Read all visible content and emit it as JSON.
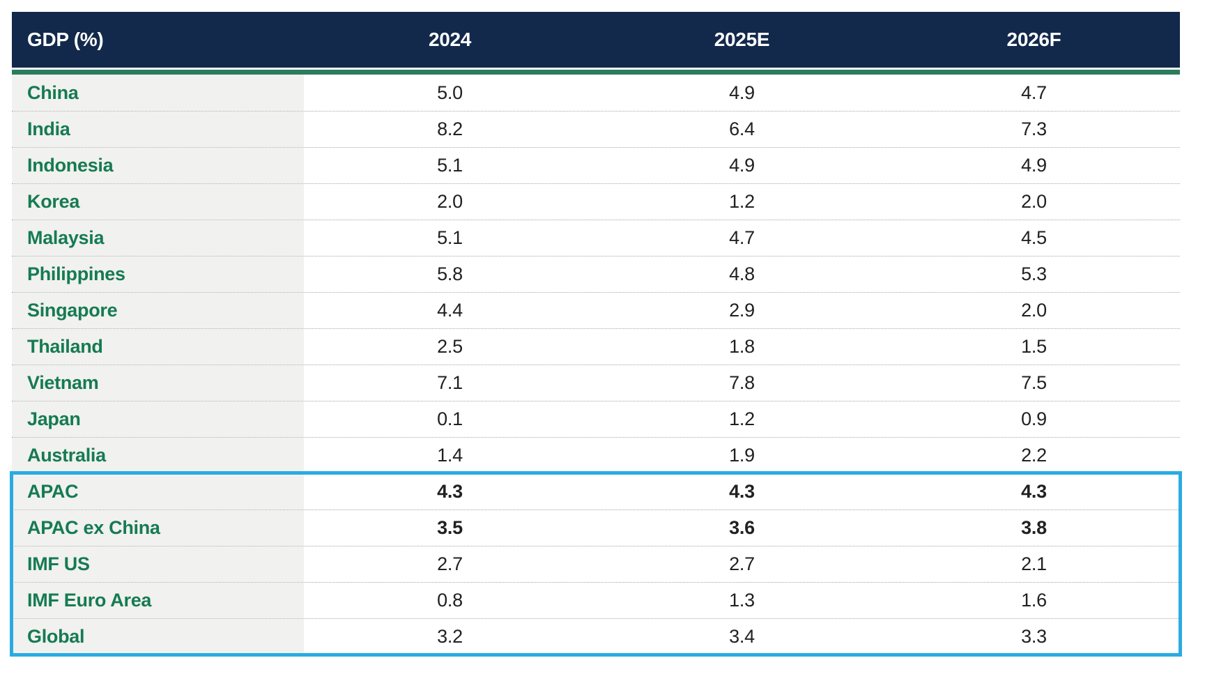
{
  "title": "GDP (%)",
  "table": {
    "columns": [
      "GDP (%)",
      "2024",
      "2025E",
      "2026F"
    ],
    "rows": [
      {
        "label": "China",
        "values": [
          "5.0",
          "4.9",
          "4.7"
        ]
      },
      {
        "label": "India",
        "values": [
          "8.2",
          "6.4",
          "7.3"
        ]
      },
      {
        "label": "Indonesia",
        "values": [
          "5.1",
          "4.9",
          "4.9"
        ]
      },
      {
        "label": "Korea",
        "values": [
          "2.0",
          "1.2",
          "2.0"
        ]
      },
      {
        "label": "Malaysia",
        "values": [
          "5.1",
          "4.7",
          "4.5"
        ]
      },
      {
        "label": "Philippines",
        "values": [
          "5.8",
          "4.8",
          "5.3"
        ]
      },
      {
        "label": "Singapore",
        "values": [
          "4.4",
          "2.9",
          "2.0"
        ]
      },
      {
        "label": "Thailand",
        "values": [
          "2.5",
          "1.8",
          "1.5"
        ]
      },
      {
        "label": "Vietnam",
        "values": [
          "7.1",
          "7.8",
          "7.5"
        ]
      },
      {
        "label": "Japan",
        "values": [
          "0.1",
          "1.2",
          "0.9"
        ]
      },
      {
        "label": "Australia",
        "values": [
          "1.4",
          "1.9",
          "2.2"
        ]
      },
      {
        "label": "APAC",
        "values": [
          "4.3",
          "4.3",
          "4.3"
        ]
      },
      {
        "label": "APAC ex China",
        "values": [
          "3.5",
          "3.6",
          "3.8"
        ]
      },
      {
        "label": "IMF US",
        "values": [
          "2.7",
          "2.7",
          "2.1"
        ]
      },
      {
        "label": "IMF Euro Area",
        "values": [
          "0.8",
          "1.3",
          "1.6"
        ]
      },
      {
        "label": "Global",
        "values": [
          "3.2",
          "3.4",
          "3.3"
        ]
      }
    ]
  },
  "colors": {
    "header_bg": "#12294B",
    "accent_green_line": "#2B7C5C",
    "label_text_green": "#157B52",
    "label_column_bg": "#F1F1EF",
    "highlight_border_blue": "#29ABE2",
    "value_text": "#212121"
  },
  "chart_data": {
    "type": "table",
    "title": "GDP (%)",
    "columns": [
      "GDP (%)",
      "2024",
      "2025E",
      "2026F"
    ],
    "rows": [
      [
        "China",
        "5.0",
        "4.9",
        "4.7"
      ],
      [
        "India",
        "8.2",
        "6.4",
        "7.3"
      ],
      [
        "Indonesia",
        "5.1",
        "4.9",
        "4.9"
      ],
      [
        "Korea",
        "2.0",
        "1.2",
        "2.0"
      ],
      [
        "Malaysia",
        "5.1",
        "4.7",
        "4.5"
      ],
      [
        "Philippines",
        "5.8",
        "4.8",
        "5.3"
      ],
      [
        "Singapore",
        "4.4",
        "2.9",
        "2.0"
      ],
      [
        "Thailand",
        "2.5",
        "1.8",
        "1.5"
      ],
      [
        "Vietnam",
        "7.1",
        "7.8",
        "7.5"
      ],
      [
        "Japan",
        "0.1",
        "1.2",
        "0.9"
      ],
      [
        "Australia",
        "1.4",
        "1.9",
        "2.2"
      ],
      [
        "APAC",
        "4.3",
        "4.3",
        "4.3"
      ],
      [
        "APAC ex China",
        "3.5",
        "3.6",
        "3.8"
      ],
      [
        "IMF US",
        "2.7",
        "2.7",
        "2.1"
      ],
      [
        "IMF Euro Area",
        "0.8",
        "1.3",
        "1.6"
      ],
      [
        "Global",
        "3.2",
        "3.4",
        "3.3"
      ]
    ],
    "bold_value_rows": [
      "APAC",
      "APAC ex China"
    ],
    "highlighted_rows": [
      "APAC",
      "APAC ex China",
      "IMF US",
      "IMF Euro Area",
      "Global"
    ]
  }
}
